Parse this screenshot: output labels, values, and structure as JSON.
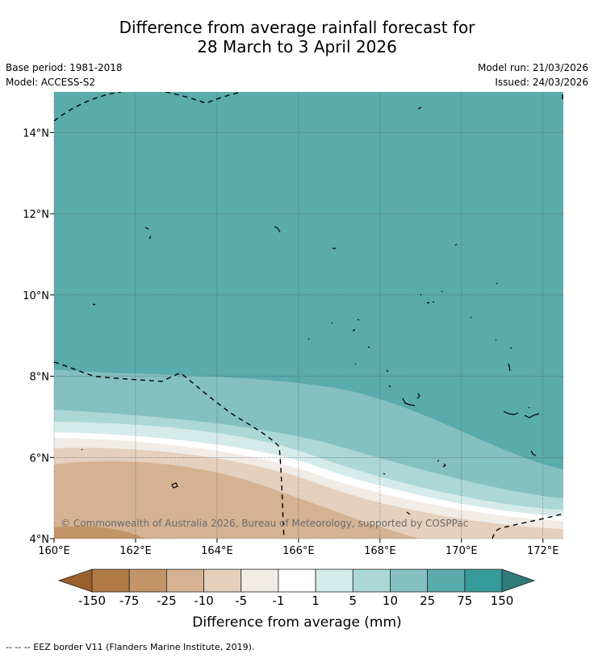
{
  "header": {
    "title_line1": "Difference from average rainfall forecast for",
    "title_line2": "28 March to 3 April 2026",
    "base_period": "Base period: 1981-2018",
    "model": "Model: ACCESS-S2",
    "model_run": "Model run: 21/03/2026",
    "issued": "Issued: 24/03/2026"
  },
  "map": {
    "lat_labels": [
      "14°N",
      "12°N",
      "10°N",
      "8°N",
      "6°N",
      "4°N"
    ],
    "lon_labels": [
      "160°E",
      "162°E",
      "164°E",
      "166°E",
      "168°E",
      "170°E",
      "172°E"
    ],
    "copyright": "© Commonwealth of Australia 2026, Bureau of Meteorology, supported by COSPPac",
    "lat_range": [
      4,
      15
    ],
    "lon_range": [
      160,
      172.5
    ]
  },
  "legend": {
    "title": "Difference from average (mm)",
    "labels": [
      "-150",
      "-75",
      "-25",
      "-10",
      "-5",
      "-1",
      "1",
      "5",
      "10",
      "25",
      "75",
      "150"
    ],
    "colors": [
      "#9b5f2c",
      "#b07a44",
      "#c39468",
      "#d4b292",
      "#e4d0bd",
      "#f1ece6",
      "#ffffff",
      "#d5ebea",
      "#acd7d7",
      "#85c0c0",
      "#5aabab",
      "#36999a",
      "#2f7a7b"
    ]
  },
  "footer": {
    "eez_note": "--  --  -- EEZ border V11 (Flanders Marine Institute, 2019)."
  }
}
